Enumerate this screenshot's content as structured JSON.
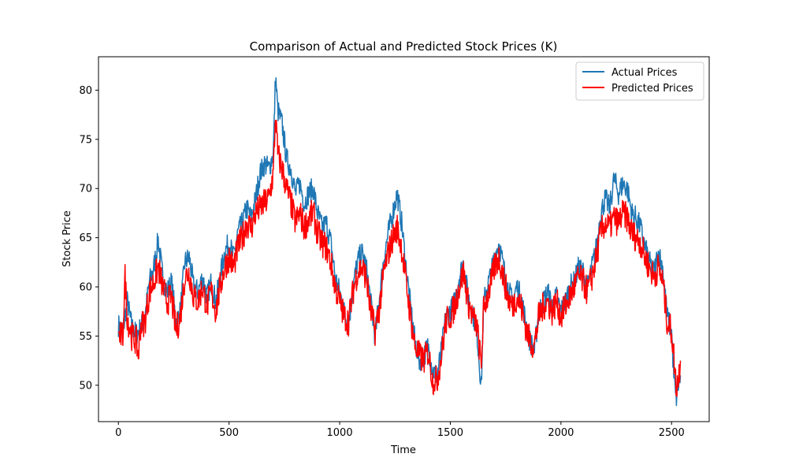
{
  "chart_data": {
    "type": "line",
    "title": "Comparison of Actual and Predicted Stock Prices (K)",
    "xlabel": "Time",
    "ylabel": "Stock Price",
    "xlim": [
      -90,
      2670
    ],
    "ylim": [
      46.3,
      83.4
    ],
    "xticks": [
      0,
      500,
      1000,
      1500,
      2000,
      2500
    ],
    "yticks": [
      50,
      55,
      60,
      65,
      70,
      75,
      80
    ],
    "grid": false,
    "legend_position": "top-right",
    "series": [
      {
        "name": "Actual Prices",
        "color": "#1f77b4",
        "points": [
          [
            0,
            56.1
          ],
          [
            20,
            55.5
          ],
          [
            40,
            58.5
          ],
          [
            60,
            56.0
          ],
          [
            80,
            55.2
          ],
          [
            100,
            55.8
          ],
          [
            120,
            57.0
          ],
          [
            140,
            60.5
          ],
          [
            160,
            62.0
          ],
          [
            180,
            64.8
          ],
          [
            200,
            61.0
          ],
          [
            220,
            59.5
          ],
          [
            240,
            60.5
          ],
          [
            260,
            56.5
          ],
          [
            280,
            57.5
          ],
          [
            300,
            62.5
          ],
          [
            320,
            63.0
          ],
          [
            340,
            60.0
          ],
          [
            360,
            59.5
          ],
          [
            380,
            61.0
          ],
          [
            400,
            59.0
          ],
          [
            420,
            60.5
          ],
          [
            440,
            58.5
          ],
          [
            460,
            61.0
          ],
          [
            480,
            63.5
          ],
          [
            500,
            64.5
          ],
          [
            520,
            63.0
          ],
          [
            540,
            65.5
          ],
          [
            560,
            66.5
          ],
          [
            580,
            68.0
          ],
          [
            600,
            67.0
          ],
          [
            620,
            69.0
          ],
          [
            640,
            71.5
          ],
          [
            660,
            72.5
          ],
          [
            680,
            72.0
          ],
          [
            700,
            73.5
          ],
          [
            710,
            81.5
          ],
          [
            720,
            78.0
          ],
          [
            740,
            76.5
          ],
          [
            760,
            73.0
          ],
          [
            780,
            72.0
          ],
          [
            800,
            69.5
          ],
          [
            820,
            70.5
          ],
          [
            840,
            68.5
          ],
          [
            860,
            69.5
          ],
          [
            880,
            70.0
          ],
          [
            900,
            67.5
          ],
          [
            920,
            66.0
          ],
          [
            940,
            66.5
          ],
          [
            960,
            64.5
          ],
          [
            980,
            61.0
          ],
          [
            1000,
            59.5
          ],
          [
            1020,
            57.5
          ],
          [
            1040,
            56.0
          ],
          [
            1060,
            60.0
          ],
          [
            1080,
            62.5
          ],
          [
            1100,
            63.5
          ],
          [
            1120,
            62.0
          ],
          [
            1140,
            58.5
          ],
          [
            1160,
            55.0
          ],
          [
            1180,
            59.0
          ],
          [
            1200,
            63.0
          ],
          [
            1220,
            65.5
          ],
          [
            1240,
            67.5
          ],
          [
            1260,
            69.5
          ],
          [
            1280,
            66.5
          ],
          [
            1300,
            62.0
          ],
          [
            1320,
            58.0
          ],
          [
            1340,
            54.5
          ],
          [
            1360,
            52.5
          ],
          [
            1380,
            53.0
          ],
          [
            1400,
            54.0
          ],
          [
            1420,
            51.5
          ],
          [
            1440,
            51.0
          ],
          [
            1460,
            53.5
          ],
          [
            1480,
            57.0
          ],
          [
            1500,
            57.5
          ],
          [
            1520,
            58.5
          ],
          [
            1540,
            61.0
          ],
          [
            1560,
            62.5
          ],
          [
            1580,
            59.0
          ],
          [
            1600,
            57.5
          ],
          [
            1620,
            55.5
          ],
          [
            1640,
            49.8
          ],
          [
            1650,
            58.0
          ],
          [
            1660,
            59.5
          ],
          [
            1680,
            61.0
          ],
          [
            1700,
            63.0
          ],
          [
            1720,
            64.5
          ],
          [
            1740,
            62.0
          ],
          [
            1760,
            60.0
          ],
          [
            1780,
            58.5
          ],
          [
            1800,
            60.0
          ],
          [
            1820,
            59.0
          ],
          [
            1840,
            56.5
          ],
          [
            1860,
            54.5
          ],
          [
            1880,
            53.5
          ],
          [
            1900,
            57.5
          ],
          [
            1920,
            58.5
          ],
          [
            1940,
            59.5
          ],
          [
            1960,
            58.0
          ],
          [
            1980,
            59.0
          ],
          [
            2000,
            57.5
          ],
          [
            2020,
            58.5
          ],
          [
            2040,
            60.0
          ],
          [
            2060,
            60.5
          ],
          [
            2080,
            62.0
          ],
          [
            2100,
            61.5
          ],
          [
            2120,
            60.0
          ],
          [
            2140,
            62.0
          ],
          [
            2160,
            64.0
          ],
          [
            2180,
            67.5
          ],
          [
            2200,
            69.0
          ],
          [
            2220,
            68.0
          ],
          [
            2240,
            71.0
          ],
          [
            2260,
            69.5
          ],
          [
            2280,
            70.5
          ],
          [
            2300,
            70.0
          ],
          [
            2320,
            67.5
          ],
          [
            2340,
            67.0
          ],
          [
            2360,
            66.0
          ],
          [
            2380,
            64.0
          ],
          [
            2400,
            62.5
          ],
          [
            2420,
            61.5
          ],
          [
            2440,
            63.5
          ],
          [
            2460,
            62.0
          ],
          [
            2480,
            57.0
          ],
          [
            2500,
            55.5
          ],
          [
            2510,
            51.0
          ],
          [
            2520,
            48.5
          ],
          [
            2530,
            50.0
          ],
          [
            2540,
            51.0
          ]
        ]
      },
      {
        "name": "Predicted Prices",
        "color": "#ff0000",
        "points": [
          [
            0,
            55.0
          ],
          [
            20,
            55.0
          ],
          [
            30,
            61.0
          ],
          [
            40,
            57.0
          ],
          [
            60,
            55.0
          ],
          [
            80,
            54.5
          ],
          [
            90,
            53.0
          ],
          [
            100,
            56.0
          ],
          [
            120,
            56.5
          ],
          [
            140,
            59.5
          ],
          [
            160,
            60.5
          ],
          [
            180,
            62.0
          ],
          [
            200,
            60.0
          ],
          [
            220,
            58.5
          ],
          [
            240,
            59.0
          ],
          [
            260,
            55.5
          ],
          [
            280,
            57.0
          ],
          [
            300,
            61.0
          ],
          [
            320,
            61.5
          ],
          [
            340,
            59.0
          ],
          [
            360,
            58.5
          ],
          [
            380,
            60.0
          ],
          [
            400,
            58.0
          ],
          [
            420,
            59.5
          ],
          [
            440,
            57.5
          ],
          [
            460,
            60.0
          ],
          [
            480,
            62.0
          ],
          [
            500,
            63.0
          ],
          [
            520,
            62.0
          ],
          [
            540,
            64.0
          ],
          [
            560,
            65.0
          ],
          [
            580,
            66.5
          ],
          [
            600,
            66.0
          ],
          [
            620,
            67.5
          ],
          [
            640,
            68.0
          ],
          [
            660,
            68.5
          ],
          [
            680,
            69.0
          ],
          [
            700,
            71.5
          ],
          [
            710,
            77.5
          ],
          [
            720,
            73.5
          ],
          [
            740,
            72.0
          ],
          [
            760,
            70.0
          ],
          [
            780,
            68.5
          ],
          [
            800,
            66.5
          ],
          [
            820,
            67.5
          ],
          [
            840,
            66.0
          ],
          [
            860,
            67.0
          ],
          [
            880,
            67.5
          ],
          [
            900,
            65.5
          ],
          [
            920,
            64.5
          ],
          [
            940,
            64.0
          ],
          [
            960,
            62.5
          ],
          [
            980,
            60.0
          ],
          [
            1000,
            58.5
          ],
          [
            1020,
            57.0
          ],
          [
            1040,
            56.5
          ],
          [
            1060,
            59.5
          ],
          [
            1080,
            61.5
          ],
          [
            1100,
            62.0
          ],
          [
            1120,
            61.0
          ],
          [
            1140,
            57.5
          ],
          [
            1160,
            55.5
          ],
          [
            1180,
            58.0
          ],
          [
            1200,
            61.5
          ],
          [
            1220,
            63.5
          ],
          [
            1240,
            65.0
          ],
          [
            1260,
            66.0
          ],
          [
            1280,
            64.0
          ],
          [
            1300,
            60.5
          ],
          [
            1320,
            57.0
          ],
          [
            1340,
            54.0
          ],
          [
            1360,
            53.0
          ],
          [
            1380,
            52.5
          ],
          [
            1400,
            53.5
          ],
          [
            1420,
            50.5
          ],
          [
            1440,
            50.5
          ],
          [
            1460,
            53.0
          ],
          [
            1480,
            56.5
          ],
          [
            1500,
            57.0
          ],
          [
            1520,
            58.0
          ],
          [
            1540,
            60.0
          ],
          [
            1560,
            61.5
          ],
          [
            1580,
            58.5
          ],
          [
            1600,
            57.0
          ],
          [
            1620,
            56.0
          ],
          [
            1640,
            52.0
          ],
          [
            1650,
            57.5
          ],
          [
            1660,
            58.5
          ],
          [
            1680,
            60.0
          ],
          [
            1700,
            62.0
          ],
          [
            1720,
            63.0
          ],
          [
            1740,
            61.0
          ],
          [
            1760,
            59.0
          ],
          [
            1780,
            58.0
          ],
          [
            1800,
            59.0
          ],
          [
            1820,
            58.0
          ],
          [
            1840,
            56.0
          ],
          [
            1860,
            54.5
          ],
          [
            1880,
            54.0
          ],
          [
            1900,
            57.0
          ],
          [
            1920,
            58.0
          ],
          [
            1940,
            58.5
          ],
          [
            1960,
            57.5
          ],
          [
            1980,
            58.5
          ],
          [
            2000,
            57.0
          ],
          [
            2020,
            58.0
          ],
          [
            2040,
            59.0
          ],
          [
            2060,
            60.0
          ],
          [
            2080,
            61.0
          ],
          [
            2100,
            60.5
          ],
          [
            2120,
            59.5
          ],
          [
            2140,
            61.0
          ],
          [
            2160,
            63.0
          ],
          [
            2180,
            65.5
          ],
          [
            2200,
            66.5
          ],
          [
            2220,
            66.0
          ],
          [
            2240,
            67.0
          ],
          [
            2260,
            66.5
          ],
          [
            2280,
            67.5
          ],
          [
            2300,
            67.0
          ],
          [
            2320,
            65.5
          ],
          [
            2340,
            65.0
          ],
          [
            2360,
            64.5
          ],
          [
            2380,
            63.0
          ],
          [
            2400,
            62.0
          ],
          [
            2420,
            61.0
          ],
          [
            2440,
            62.0
          ],
          [
            2460,
            60.5
          ],
          [
            2480,
            56.5
          ],
          [
            2500,
            55.5
          ],
          [
            2510,
            53.0
          ],
          [
            2520,
            50.0
          ],
          [
            2530,
            50.5
          ],
          [
            2540,
            52.5
          ]
        ]
      }
    ]
  }
}
